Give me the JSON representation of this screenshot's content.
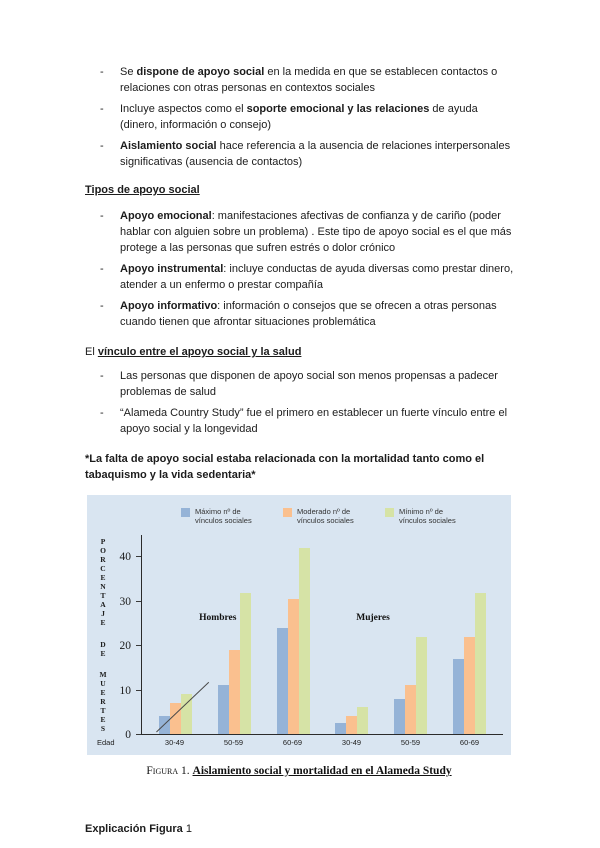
{
  "doc": {
    "section1": {
      "items": [
        {
          "pre": "Se ",
          "bold": "dispone de apoyo social",
          "post": " en la medida en que se establecen contactos o relaciones con otras personas en contextos sociales"
        },
        {
          "pre": "Incluye aspectos como el ",
          "bold": "soporte emocional y las relaciones",
          "post": " de ayuda (dinero, información o consejo)"
        },
        {
          "pre": "",
          "bold": "Aislamiento social",
          "post": " hace referencia a la ausencia de relaciones interpersonales significativas (ausencia de contactos)"
        }
      ]
    },
    "section2": {
      "heading": "Tipos de apoyo social",
      "items": [
        {
          "pre": "",
          "bold": "Apoyo emocional",
          "post": ": manifestaciones afectivas de confianza y de cariño (poder hablar con alguien sobre un problema) . Este tipo de apoyo social es el que más protege a las personas que sufren estrés o dolor crónico"
        },
        {
          "pre": "",
          "bold": "Apoyo instrumental",
          "post": ": incluye conductas de ayuda diversas como prestar dinero, atender a un enfermo o prestar compañía"
        },
        {
          "pre": "",
          "bold": "Apoyo informativo",
          "post": ": información o consejos que se ofrecen a otras personas cuando tienen que afrontar situaciones problemática"
        }
      ]
    },
    "section3": {
      "heading_pre": "El ",
      "heading_underlined": "vínculo entre el apoyo social y la salud",
      "items": [
        {
          "text": "Las personas que disponen de apoyo social son menos propensas a padecer problemas de salud"
        },
        {
          "text": "“Alameda Country Study” fue el primero en establecer un fuerte vínculo entre el apoyo social y la longevidad"
        }
      ]
    },
    "emphasis": "*La falta de apoyo social estaba relacionada con la mortalidad tanto como el tabaquismo y la vida sedentaria*",
    "figure_caption": {
      "prefix": "Figura 1. ",
      "title": "Aislamiento social y mortalidad en el Alameda Study"
    },
    "footer": {
      "bold": "Explicación Figura",
      "rest": " 1"
    }
  },
  "chart_data": {
    "type": "bar",
    "title": "",
    "ylabel": "PORCENTAJE DE MUERTES",
    "xlabel": "Edad",
    "ylim": [
      0,
      45
    ],
    "yticks": [
      0,
      10,
      20,
      30,
      40
    ],
    "grid": false,
    "legend_position": "top",
    "plot_bg": "#d9e5f1",
    "group_headers": [
      "Hombres",
      "Mujeres"
    ],
    "categories": [
      "30-49",
      "50-59",
      "60-69",
      "30-49",
      "50-59",
      "60-69"
    ],
    "series": [
      {
        "name": "Máximo nº de vínculos sociales",
        "color": "#95b3d7",
        "values": [
          4,
          11,
          24,
          2.5,
          8,
          17
        ]
      },
      {
        "name": "Moderado nº de vínculos sociales",
        "color": "#fac08f",
        "values": [
          7,
          19,
          30.5,
          4,
          11,
          22
        ]
      },
      {
        "name": "Mínimo nº de vínculos sociales",
        "color": "#d6e3a6",
        "values": [
          9,
          32,
          42,
          6,
          22,
          32
        ]
      }
    ],
    "annotations": [
      {
        "type": "line",
        "note": "diagonal trend line across the Hombres 30-49 bar group"
      }
    ]
  }
}
